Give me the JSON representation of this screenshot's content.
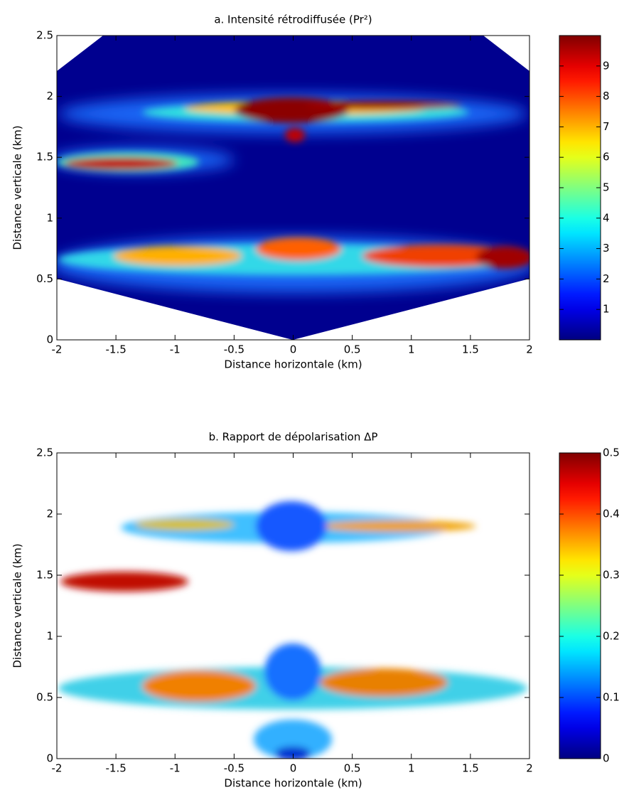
{
  "chart_data": [
    {
      "type": "heatmap",
      "title": "a. Intensité rétrodiffusée (Pr²)",
      "xlabel": "Distance horizontale (km)",
      "ylabel": "Distance verticale (km)",
      "xlim": [
        -2,
        2
      ],
      "ylim": [
        0,
        2.5
      ],
      "xticks": [
        -2,
        -1.5,
        -1,
        -0.5,
        0,
        0.5,
        1,
        1.5,
        2
      ],
      "yticks": [
        0,
        0.5,
        1,
        1.5,
        2,
        2.5
      ],
      "colormap": "jet",
      "clim": [
        0,
        10
      ],
      "cticks": [
        1,
        2,
        3,
        4,
        5,
        6,
        7,
        8,
        9
      ]
    },
    {
      "type": "heatmap",
      "title": "b. Rapport de dépolarisation ΔP",
      "xlabel": "Distance horizontale (km)",
      "ylabel": "Distance verticale (km)",
      "xlim": [
        -2,
        2
      ],
      "ylim": [
        0,
        2.5
      ],
      "xticks": [
        -2,
        -1.5,
        -1,
        -0.5,
        0,
        0.5,
        1,
        1.5,
        2
      ],
      "yticks": [
        0,
        0.5,
        1,
        1.5,
        2,
        2.5
      ],
      "colormap": "jet",
      "clim": [
        0,
        0.5
      ],
      "cticks": [
        0,
        0.1,
        0.2,
        0.3,
        0.4,
        0.5
      ]
    }
  ]
}
